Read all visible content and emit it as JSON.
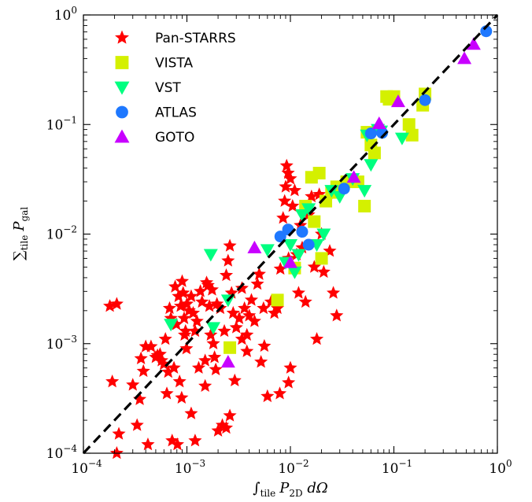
{
  "chart_data": {
    "type": "scatter",
    "x_scale": "log",
    "y_scale": "log",
    "xlim": [
      0.0001,
      1
    ],
    "ylim": [
      0.0001,
      1
    ],
    "xlabel": "∫tile P2D dΩ",
    "ylabel": "∑tile Pgal",
    "x_tick_labels": [
      {
        "base": "10",
        "exp": "−4"
      },
      {
        "base": "10",
        "exp": "−3"
      },
      {
        "base": "10",
        "exp": "−2"
      },
      {
        "base": "10",
        "exp": "−1"
      },
      {
        "base": "10",
        "exp": "0"
      }
    ],
    "y_tick_labels": [
      {
        "base": "10",
        "exp": "−4"
      },
      {
        "base": "10",
        "exp": "−3"
      },
      {
        "base": "10",
        "exp": "−2"
      },
      {
        "base": "10",
        "exp": "−1"
      },
      {
        "base": "10",
        "exp": "0"
      }
    ],
    "legend_position": "top-left",
    "reference_line": {
      "style": "dashed",
      "color": "#000000",
      "from": [
        0.0001,
        0.0001
      ],
      "to": [
        1,
        1
      ]
    },
    "series": [
      {
        "name": "Pan-STARRS",
        "marker": "star",
        "color": "#ff0000",
        "points": [
          [
            0.00018,
            0.0022
          ],
          [
            0.00021,
            0.0023
          ],
          [
            0.00019,
            0.00045
          ],
          [
            0.00022,
            0.00015
          ],
          [
            0.00021,
            0.0001
          ],
          [
            0.0003,
            0.00042
          ],
          [
            0.00033,
            0.00018
          ],
          [
            0.00035,
            0.00031
          ],
          [
            0.00038,
            0.00056
          ],
          [
            0.00036,
            0.00073
          ],
          [
            0.0004,
            0.00094
          ],
          [
            0.00042,
            0.00012
          ],
          [
            0.00045,
            0.00094
          ],
          [
            0.0005,
            0.00075
          ],
          [
            0.00052,
            0.00078
          ],
          [
            0.00055,
            0.0008
          ],
          [
            0.00057,
            0.0007
          ],
          [
            0.0006,
            0.00065
          ],
          [
            0.00062,
            0.0011
          ],
          [
            0.00064,
            0.00035
          ],
          [
            0.00066,
            0.00055
          ],
          [
            0.00068,
            0.0021
          ],
          [
            0.0007,
            0.0017
          ],
          [
            0.00072,
            0.00013
          ],
          [
            0.00075,
            0.0006
          ],
          [
            0.00077,
            0.0033
          ],
          [
            0.00079,
            0.0015
          ],
          [
            0.00081,
            0.00012
          ],
          [
            0.00083,
            0.0027
          ],
          [
            0.00085,
            0.00045
          ],
          [
            0.00087,
            0.0022
          ],
          [
            0.00089,
            0.00032
          ],
          [
            0.0009,
            0.0037
          ],
          [
            0.00092,
            0.0029
          ],
          [
            0.00094,
            0.0017
          ],
          [
            0.00095,
            0.0012
          ],
          [
            0.00097,
            0.0013
          ],
          [
            0.00099,
            0.0009
          ],
          [
            0.001,
            0.0023
          ],
          [
            0.00105,
            0.002
          ],
          [
            0.0011,
            0.0027
          ],
          [
            0.00115,
            0.0019
          ],
          [
            0.0012,
            0.0013
          ],
          [
            0.00125,
            0.0016
          ],
          [
            0.0013,
            0.0006
          ],
          [
            0.00135,
            0.003
          ],
          [
            0.0014,
            0.0024
          ],
          [
            0.0015,
            0.0007
          ],
          [
            0.00155,
            0.0036
          ],
          [
            0.0016,
            0.0034
          ],
          [
            0.00165,
            0.0022
          ],
          [
            0.0017,
            0.0012
          ],
          [
            0.00175,
            0.0031
          ],
          [
            0.0018,
            0.001
          ],
          [
            0.00185,
            0.00075
          ],
          [
            0.0019,
            0.00058
          ],
          [
            0.00195,
            0.0023
          ],
          [
            0.002,
            0.00016
          ],
          [
            0.0021,
            0.0021
          ],
          [
            0.0022,
            0.00018
          ],
          [
            0.0023,
            0.0013
          ],
          [
            0.0024,
            0.0042
          ],
          [
            0.0025,
            0.0057
          ],
          [
            0.0026,
            0.0078
          ],
          [
            0.0027,
            0.0029
          ],
          [
            0.0028,
            0.0019
          ],
          [
            0.0029,
            0.00046
          ],
          [
            0.003,
            0.0014
          ],
          [
            0.0032,
            0.0017
          ],
          [
            0.0034,
            0.0032
          ],
          [
            0.0036,
            0.0021
          ],
          [
            0.0038,
            0.0012
          ],
          [
            0.004,
            0.0018
          ],
          [
            0.0042,
            0.0025
          ],
          [
            0.0045,
            0.0016
          ],
          [
            0.0048,
            0.0035
          ],
          [
            0.005,
            0.0043
          ],
          [
            0.0055,
            0.0021
          ],
          [
            0.006,
            0.00033
          ],
          [
            0.0065,
            0.0024
          ],
          [
            0.007,
            0.0019
          ],
          [
            0.0075,
            0.0021
          ],
          [
            0.008,
            0.0048
          ],
          [
            0.0085,
            0.014
          ],
          [
            0.009,
            0.027
          ],
          [
            0.0095,
            0.036
          ],
          [
            0.01,
            0.032
          ],
          [
            0.0105,
            0.018
          ],
          [
            0.011,
            0.025
          ],
          [
            0.0115,
            0.0065
          ],
          [
            0.012,
            0.0029
          ],
          [
            0.0125,
            0.012
          ],
          [
            0.013,
            0.0075
          ],
          [
            0.014,
            0.0024
          ],
          [
            0.015,
            0.015
          ],
          [
            0.016,
            0.022
          ],
          [
            0.017,
            0.005
          ],
          [
            0.018,
            0.0011
          ],
          [
            0.019,
            0.023
          ],
          [
            0.02,
            0.01
          ],
          [
            0.021,
            0.0045
          ],
          [
            0.022,
            0.02
          ],
          [
            0.024,
            0.007
          ],
          [
            0.026,
            0.0029
          ],
          [
            0.028,
            0.0018
          ],
          [
            0.0092,
            0.042
          ],
          [
            0.0088,
            0.02
          ],
          [
            0.0096,
            0.006
          ],
          [
            0.01,
            0.0006
          ],
          [
            0.0096,
            0.00044
          ],
          [
            0.0079,
            0.00035
          ],
          [
            0.0056,
            0.00095
          ],
          [
            0.0052,
            0.00068
          ],
          [
            0.0038,
            0.00085
          ],
          [
            0.0034,
            0.0011
          ],
          [
            0.0026,
            0.00022
          ],
          [
            0.0024,
            0.00017
          ],
          [
            0.0015,
            0.00041
          ],
          [
            0.0012,
            0.00013
          ],
          [
            0.0011,
            0.00023
          ]
        ]
      },
      {
        "name": "VISTA",
        "marker": "square",
        "color": "#d4f000",
        "points": [
          [
            0.0026,
            0.00092
          ],
          [
            0.0075,
            0.0025
          ],
          [
            0.011,
            0.0049
          ],
          [
            0.014,
            0.018
          ],
          [
            0.017,
            0.013
          ],
          [
            0.02,
            0.006
          ],
          [
            0.022,
            0.02
          ],
          [
            0.025,
            0.024
          ],
          [
            0.028,
            0.027
          ],
          [
            0.016,
            0.033
          ],
          [
            0.019,
            0.036
          ],
          [
            0.052,
            0.018
          ],
          [
            0.055,
            0.085
          ],
          [
            0.06,
            0.065
          ],
          [
            0.065,
            0.055
          ],
          [
            0.085,
            0.18
          ],
          [
            0.09,
            0.17
          ],
          [
            0.1,
            0.18
          ],
          [
            0.14,
            0.1
          ],
          [
            0.15,
            0.08
          ],
          [
            0.19,
            0.15
          ],
          [
            0.2,
            0.19
          ],
          [
            0.035,
            0.03
          ],
          [
            0.045,
            0.03
          ]
        ]
      },
      {
        "name": "VST",
        "marker": "triangle-down",
        "color": "#00ff80",
        "points": [
          [
            0.0007,
            0.0015
          ],
          [
            0.0017,
            0.0065
          ],
          [
            0.0018,
            0.0014
          ],
          [
            0.0025,
            0.0025
          ],
          [
            0.006,
            0.0072
          ],
          [
            0.009,
            0.0055
          ],
          [
            0.01,
            0.008
          ],
          [
            0.011,
            0.0045
          ],
          [
            0.012,
            0.0065
          ],
          [
            0.013,
            0.015
          ],
          [
            0.015,
            0.017
          ],
          [
            0.018,
            0.008
          ],
          [
            0.021,
            0.01
          ],
          [
            0.025,
            0.025
          ],
          [
            0.03,
            0.022
          ],
          [
            0.04,
            0.032
          ],
          [
            0.052,
            0.025
          ],
          [
            0.055,
            0.08
          ],
          [
            0.07,
            0.09
          ],
          [
            0.075,
            0.087
          ],
          [
            0.12,
            0.075
          ],
          [
            0.06,
            0.043
          ]
        ]
      },
      {
        "name": "ATLAS",
        "marker": "circle",
        "color": "#1e78ff",
        "points": [
          [
            0.008,
            0.0095
          ],
          [
            0.0095,
            0.011
          ],
          [
            0.013,
            0.0105
          ],
          [
            0.015,
            0.008
          ],
          [
            0.033,
            0.026
          ],
          [
            0.06,
            0.083
          ],
          [
            0.077,
            0.084
          ],
          [
            0.2,
            0.167
          ],
          [
            0.78,
            0.71
          ]
        ]
      },
      {
        "name": "GOTO",
        "marker": "triangle-up",
        "color": "#c800ff",
        "points": [
          [
            0.0025,
            0.00068
          ],
          [
            0.0045,
            0.0075
          ],
          [
            0.01,
            0.0055
          ],
          [
            0.041,
            0.033
          ],
          [
            0.072,
            0.102
          ],
          [
            0.11,
            0.162
          ],
          [
            0.48,
            0.4
          ],
          [
            0.59,
            0.54
          ]
        ]
      }
    ]
  }
}
